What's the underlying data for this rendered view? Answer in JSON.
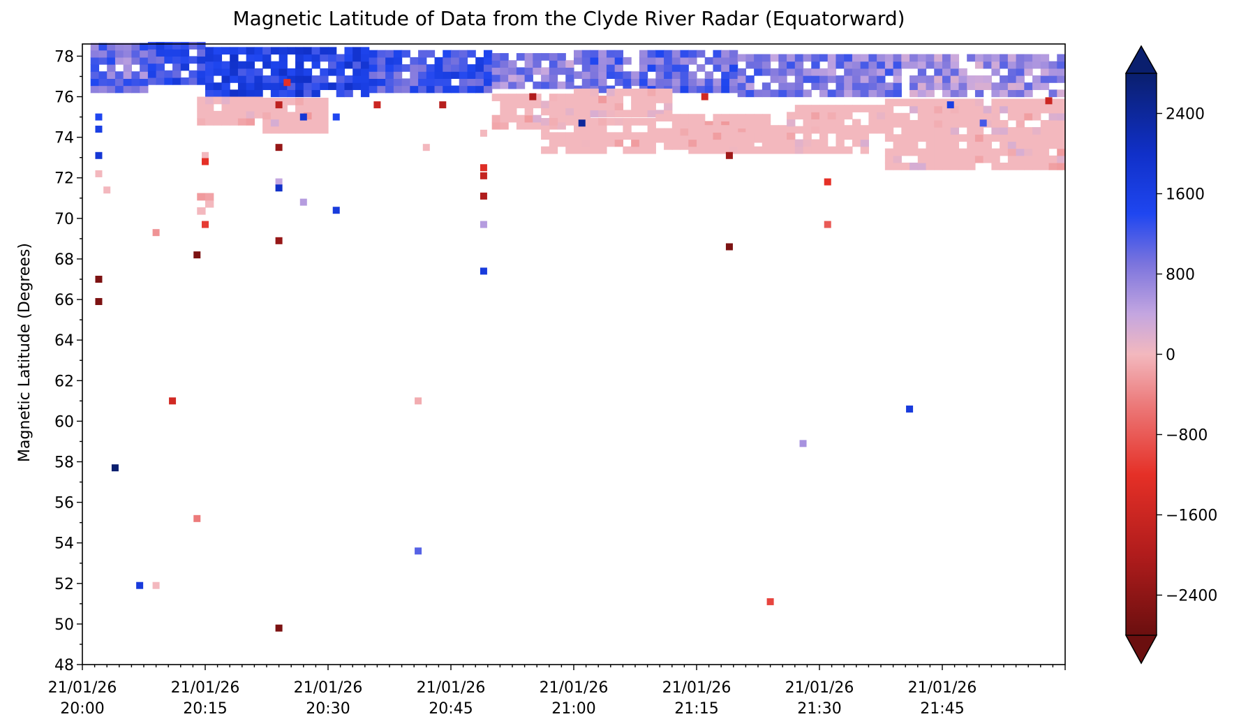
{
  "chart_data": {
    "type": "heatmap",
    "title": "Magnetic Latitude of Data from the Clyde River Radar (Equatorward)",
    "ylabel": "Magnetic Latitude (Degrees)",
    "xlabel": "",
    "ylim": [
      48,
      78.6
    ],
    "y_ticks": [
      48,
      50,
      52,
      54,
      56,
      58,
      60,
      62,
      64,
      66,
      68,
      70,
      72,
      74,
      76,
      78
    ],
    "x_range_minutes_after_2000": [
      0,
      120
    ],
    "x_ticks": [
      {
        "date": "21/01/26",
        "time": "20:00"
      },
      {
        "date": "21/01/26",
        "time": "20:15"
      },
      {
        "date": "21/01/26",
        "time": "20:30"
      },
      {
        "date": "21/01/26",
        "time": "20:45"
      },
      {
        "date": "21/01/26",
        "time": "21:00"
      },
      {
        "date": "21/01/26",
        "time": "21:15"
      },
      {
        "date": "21/01/26",
        "time": "21:30"
      },
      {
        "date": "21/01/26",
        "time": "21:45"
      }
    ],
    "colorbar": {
      "min": -2800,
      "max": 2800,
      "ticks": [
        "2400",
        "1600",
        "800",
        "0",
        "−800",
        "−1600",
        "−2400"
      ],
      "tick_values": [
        2400,
        1600,
        800,
        0,
        -800,
        -1600,
        -2400
      ],
      "extend": "both",
      "colormap": "red-white-blue diverging",
      "stops": [
        {
          "v": -2800,
          "c": "#6b0f0f"
        },
        {
          "v": -2000,
          "c": "#b01c1c"
        },
        {
          "v": -1200,
          "c": "#e53027"
        },
        {
          "v": -500,
          "c": "#ec7a7a"
        },
        {
          "v": 0,
          "c": "#f3b8be"
        },
        {
          "v": 400,
          "c": "#c4a6e0"
        },
        {
          "v": 900,
          "c": "#7b74dd"
        },
        {
          "v": 1400,
          "c": "#1f46f0"
        },
        {
          "v": 2000,
          "c": "#1030c8"
        },
        {
          "v": 2800,
          "c": "#0a1f6e"
        }
      ]
    },
    "cell_size": {
      "minutes": 1,
      "degrees": 0.35
    },
    "bands": [
      {
        "t0": 1,
        "t1": 8,
        "y0": 76.2,
        "y1": 78.3,
        "v": 900
      },
      {
        "t0": 8,
        "t1": 15,
        "y0": 76.6,
        "y1": 78.4,
        "v": 1300
      },
      {
        "t0": 15,
        "t1": 35,
        "y0": 76.0,
        "y1": 78.4,
        "v": 1500
      },
      {
        "t0": 35,
        "t1": 50,
        "y0": 76.2,
        "y1": 78.0,
        "v": 1200
      },
      {
        "t0": 50,
        "t1": 60,
        "y0": 76.4,
        "y1": 78.0,
        "v": 700
      },
      {
        "t0": 60,
        "t1": 80,
        "y0": 76.2,
        "y1": 78.0,
        "v": 1000
      },
      {
        "t0": 80,
        "t1": 100,
        "y0": 76.0,
        "y1": 78.0,
        "v": 800
      },
      {
        "t0": 100,
        "t1": 120,
        "y0": 76.0,
        "y1": 78.0,
        "v": 600
      },
      {
        "t0": 14,
        "t1": 22,
        "y0": 74.6,
        "y1": 75.8,
        "v": 0
      },
      {
        "t0": 22,
        "t1": 30,
        "y0": 74.2,
        "y1": 75.8,
        "v": 0
      },
      {
        "t0": 50,
        "t1": 62,
        "y0": 74.4,
        "y1": 76.0,
        "v": 0
      },
      {
        "t0": 56,
        "t1": 70,
        "y0": 73.2,
        "y1": 74.6,
        "v": 0
      },
      {
        "t0": 60,
        "t1": 72,
        "y0": 75.0,
        "y1": 76.2,
        "v": 0
      },
      {
        "t0": 70,
        "t1": 84,
        "y0": 73.4,
        "y1": 75.0,
        "v": 0
      },
      {
        "t0": 74,
        "t1": 96,
        "y0": 73.2,
        "y1": 74.4,
        "v": 0
      },
      {
        "t0": 86,
        "t1": 98,
        "y0": 74.2,
        "y1": 75.4,
        "v": 0
      },
      {
        "t0": 98,
        "t1": 120,
        "y0": 72.4,
        "y1": 75.8,
        "v": 0
      },
      {
        "t0": 14,
        "t1": 16,
        "y0": 70.2,
        "y1": 71.2,
        "v": 0
      }
    ],
    "points": [
      {
        "t": 2,
        "y": 75.0,
        "v": 1400
      },
      {
        "t": 2,
        "y": 74.4,
        "v": 1600
      },
      {
        "t": 2,
        "y": 73.1,
        "v": 1800
      },
      {
        "t": 2,
        "y": 72.2,
        "v": 0
      },
      {
        "t": 3,
        "y": 71.4,
        "v": 0
      },
      {
        "t": 2,
        "y": 67.0,
        "v": -2600
      },
      {
        "t": 2,
        "y": 65.9,
        "v": -2600
      },
      {
        "t": 4,
        "y": 57.7,
        "v": 2800
      },
      {
        "t": 7,
        "y": 51.9,
        "v": 1700
      },
      {
        "t": 9,
        "y": 51.9,
        "v": 0
      },
      {
        "t": 9,
        "y": 69.3,
        "v": -300
      },
      {
        "t": 11,
        "y": 61.0,
        "v": -1500
      },
      {
        "t": 14,
        "y": 68.2,
        "v": -2600
      },
      {
        "t": 14,
        "y": 55.2,
        "v": -500
      },
      {
        "t": 15,
        "y": 73.1,
        "v": 0
      },
      {
        "t": 15,
        "y": 72.8,
        "v": -1200
      },
      {
        "t": 15,
        "y": 69.7,
        "v": -1100
      },
      {
        "t": 24,
        "y": 73.5,
        "v": -2300
      },
      {
        "t": 24,
        "y": 71.8,
        "v": 400
      },
      {
        "t": 24,
        "y": 71.5,
        "v": 2000
      },
      {
        "t": 24,
        "y": 68.9,
        "v": -2300
      },
      {
        "t": 24,
        "y": 49.8,
        "v": -2600
      },
      {
        "t": 27,
        "y": 70.8,
        "v": 500
      },
      {
        "t": 31,
        "y": 70.4,
        "v": 1700
      },
      {
        "t": 41,
        "y": 61.0,
        "v": -100
      },
      {
        "t": 41,
        "y": 53.6,
        "v": 1100
      },
      {
        "t": 49,
        "y": 72.5,
        "v": -1300
      },
      {
        "t": 49,
        "y": 72.1,
        "v": -1700
      },
      {
        "t": 49,
        "y": 71.1,
        "v": -2000
      },
      {
        "t": 49,
        "y": 69.7,
        "v": 500
      },
      {
        "t": 49,
        "y": 67.4,
        "v": 1700
      },
      {
        "t": 49,
        "y": 74.2,
        "v": 0
      },
      {
        "t": 79,
        "y": 73.1,
        "v": -2200
      },
      {
        "t": 79,
        "y": 68.6,
        "v": -2600
      },
      {
        "t": 84,
        "y": 51.1,
        "v": -1000
      },
      {
        "t": 88,
        "y": 58.9,
        "v": 600
      },
      {
        "t": 91,
        "y": 71.8,
        "v": -1200
      },
      {
        "t": 91,
        "y": 69.7,
        "v": -800
      },
      {
        "t": 101,
        "y": 60.6,
        "v": 1700
      },
      {
        "t": 61,
        "y": 74.7,
        "v": 2400
      },
      {
        "t": 24,
        "y": 75.6,
        "v": -1800
      },
      {
        "t": 25,
        "y": 76.7,
        "v": -1200
      },
      {
        "t": 27,
        "y": 75.0,
        "v": 1800
      },
      {
        "t": 36,
        "y": 75.6,
        "v": -1600
      },
      {
        "t": 44,
        "y": 75.6,
        "v": -1900
      },
      {
        "t": 55,
        "y": 76.0,
        "v": -2000
      },
      {
        "t": 76,
        "y": 76.0,
        "v": -1500
      },
      {
        "t": 118,
        "y": 75.8,
        "v": -1600
      },
      {
        "t": 42,
        "y": 73.5,
        "v": 0
      },
      {
        "t": 31,
        "y": 75.0,
        "v": 1400
      },
      {
        "t": 106,
        "y": 75.6,
        "v": 1600
      },
      {
        "t": 110,
        "y": 74.7,
        "v": 1200
      }
    ]
  }
}
